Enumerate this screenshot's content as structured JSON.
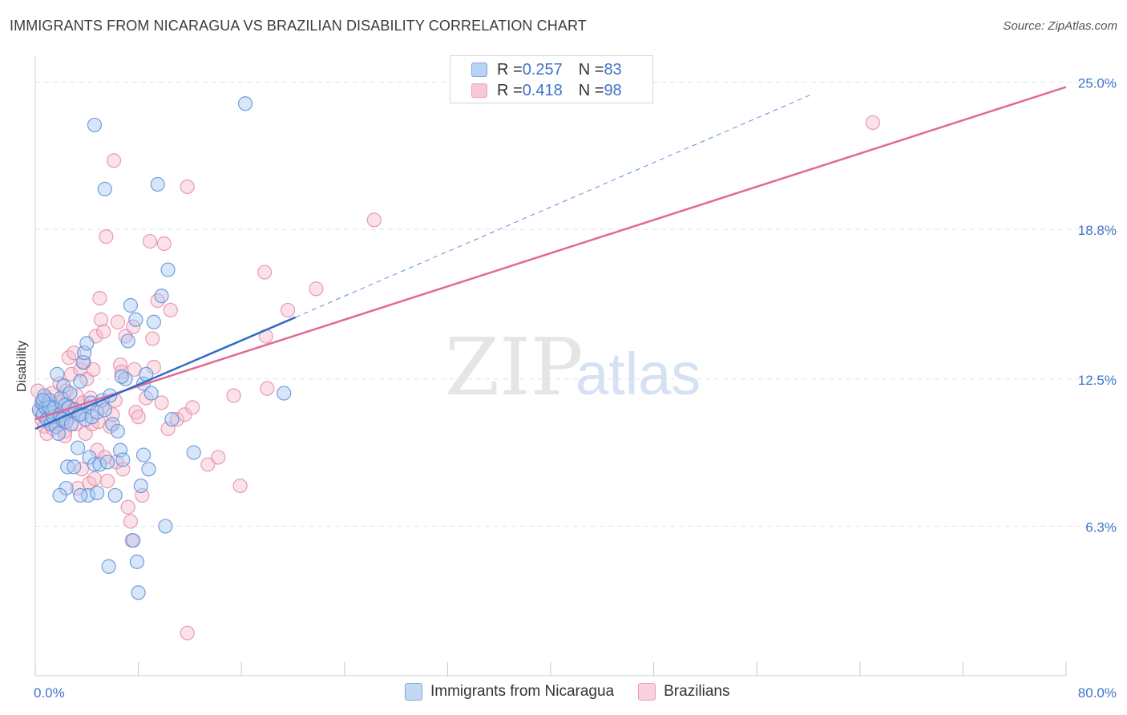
{
  "header": {
    "title": "IMMIGRANTS FROM NICARAGUA VS BRAZILIAN DISABILITY CORRELATION CHART",
    "source": "Source: ZipAtlas.com"
  },
  "watermark": {
    "zip": "ZIP",
    "atlas": "atlas"
  },
  "legend": {
    "blue": {
      "r_label": "R = ",
      "r_value": "0.257",
      "n_label": "N = ",
      "n_value": "83"
    },
    "pink": {
      "r_label": "R = ",
      "r_value": "0.418",
      "n_label": "N = ",
      "n_value": "98"
    }
  },
  "colors": {
    "blue": "#5b8fd8",
    "blue_fill": "#a9c7f2",
    "blue_line": "#2f6cc7",
    "pink": "#e88aa8",
    "pink_fill": "#f6bccd",
    "pink_line": "#e06a92",
    "axis_text": "#3f74c9",
    "grid": "#e3e3e3"
  },
  "chart_data": {
    "type": "scatter",
    "title": "IMMIGRANTS FROM NICARAGUA VS BRAZILIAN DISABILITY CORRELATION CHART",
    "xlabel": "",
    "ylabel": "Disability",
    "xlim": [
      0,
      80
    ],
    "ylim": [
      0,
      26
    ],
    "x_tick_labels": [
      {
        "value": 0,
        "label": "0.0%"
      },
      {
        "value": 80,
        "label": "80.0%"
      }
    ],
    "y_tick_labels": [
      {
        "value": 6.3,
        "label": "6.3%"
      },
      {
        "value": 12.5,
        "label": "12.5%"
      },
      {
        "value": 18.8,
        "label": "18.8%"
      },
      {
        "value": 25.0,
        "label": "25.0%"
      }
    ],
    "series": [
      {
        "name": "Immigrants from Nicaragua",
        "color": "blue",
        "R": 0.257,
        "N": 83,
        "trend": {
          "x": [
            0,
            20.2
          ],
          "y": [
            10.4,
            15.1
          ],
          "dashed_extension_to": [
            60.3,
            24.5
          ]
        },
        "points": [
          [
            0.3,
            11.2
          ],
          [
            0.5,
            11.5
          ],
          [
            0.6,
            11.0
          ],
          [
            0.7,
            11.8
          ],
          [
            0.8,
            11.3
          ],
          [
            0.9,
            10.8
          ],
          [
            1.0,
            11.4
          ],
          [
            1.1,
            11.6
          ],
          [
            1.2,
            10.6
          ],
          [
            1.3,
            11.1
          ],
          [
            1.4,
            10.9
          ],
          [
            1.5,
            11.3
          ],
          [
            1.6,
            10.5
          ],
          [
            1.7,
            12.7
          ],
          [
            1.8,
            10.2
          ],
          [
            1.9,
            11.0
          ],
          [
            2.0,
            11.7
          ],
          [
            2.1,
            10.8
          ],
          [
            2.2,
            12.2
          ],
          [
            2.3,
            11.4
          ],
          [
            2.4,
            10.7
          ],
          [
            2.5,
            8.8
          ],
          [
            2.6,
            11.3
          ],
          [
            2.7,
            11.9
          ],
          [
            2.8,
            10.6
          ],
          [
            3.0,
            8.8
          ],
          [
            3.1,
            11.2
          ],
          [
            3.3,
            9.6
          ],
          [
            3.5,
            12.4
          ],
          [
            3.6,
            11.0
          ],
          [
            3.7,
            13.2
          ],
          [
            3.8,
            13.6
          ],
          [
            3.9,
            10.8
          ],
          [
            4.0,
            14.0
          ],
          [
            4.1,
            7.6
          ],
          [
            4.2,
            9.2
          ],
          [
            4.3,
            11.5
          ],
          [
            4.4,
            10.9
          ],
          [
            4.6,
            8.9
          ],
          [
            4.8,
            11.1
          ],
          [
            5.0,
            8.9
          ],
          [
            5.2,
            11.6
          ],
          [
            5.4,
            11.2
          ],
          [
            5.6,
            9.0
          ],
          [
            5.8,
            11.8
          ],
          [
            6.0,
            10.6
          ],
          [
            6.2,
            7.6
          ],
          [
            6.4,
            10.3
          ],
          [
            6.6,
            9.5
          ],
          [
            6.8,
            9.1
          ],
          [
            7.0,
            12.5
          ],
          [
            7.2,
            14.1
          ],
          [
            7.4,
            15.6
          ],
          [
            7.6,
            5.7
          ],
          [
            7.8,
            15.0
          ],
          [
            8.0,
            3.5
          ],
          [
            8.2,
            8.0
          ],
          [
            8.4,
            12.3
          ],
          [
            8.6,
            12.7
          ],
          [
            8.8,
            8.7
          ],
          [
            9.0,
            11.9
          ],
          [
            9.2,
            14.9
          ],
          [
            9.5,
            20.7
          ],
          [
            9.8,
            16.0
          ],
          [
            10.1,
            6.3
          ],
          [
            10.3,
            17.1
          ],
          [
            10.6,
            10.8
          ],
          [
            12.3,
            9.4
          ],
          [
            16.3,
            24.1
          ],
          [
            19.3,
            11.9
          ],
          [
            4.6,
            23.2
          ],
          [
            5.4,
            20.5
          ],
          [
            5.7,
            4.6
          ],
          [
            7.9,
            4.8
          ],
          [
            3.5,
            7.6
          ],
          [
            2.4,
            7.9
          ],
          [
            1.9,
            7.6
          ],
          [
            4.8,
            7.7
          ],
          [
            6.7,
            12.6
          ],
          [
            8.4,
            9.3
          ],
          [
            1.1,
            11.3
          ],
          [
            0.6,
            11.6
          ],
          [
            3.4,
            11.0
          ]
        ]
      },
      {
        "name": "Brazilians",
        "color": "pink",
        "R": 0.418,
        "N": 98,
        "trend": {
          "x": [
            0,
            80
          ],
          "y": [
            10.8,
            24.8
          ]
        },
        "points": [
          [
            0.2,
            12.0
          ],
          [
            0.4,
            11.1
          ],
          [
            0.5,
            10.8
          ],
          [
            0.6,
            11.4
          ],
          [
            0.7,
            10.5
          ],
          [
            0.8,
            11.7
          ],
          [
            0.9,
            10.2
          ],
          [
            1.0,
            11.0
          ],
          [
            1.1,
            11.3
          ],
          [
            1.2,
            10.7
          ],
          [
            1.3,
            11.9
          ],
          [
            1.4,
            10.4
          ],
          [
            1.5,
            11.2
          ],
          [
            1.6,
            10.9
          ],
          [
            1.7,
            11.5
          ],
          [
            1.8,
            10.6
          ],
          [
            1.9,
            12.3
          ],
          [
            2.0,
            11.1
          ],
          [
            2.1,
            10.8
          ],
          [
            2.2,
            11.6
          ],
          [
            2.3,
            10.3
          ],
          [
            2.4,
            12.0
          ],
          [
            2.5,
            11.4
          ],
          [
            2.6,
            13.4
          ],
          [
            2.7,
            10.9
          ],
          [
            2.8,
            12.7
          ],
          [
            2.9,
            11.2
          ],
          [
            3.0,
            13.6
          ],
          [
            3.1,
            10.6
          ],
          [
            3.2,
            11.8
          ],
          [
            3.3,
            7.9
          ],
          [
            3.4,
            11.0
          ],
          [
            3.5,
            12.9
          ],
          [
            3.6,
            8.7
          ],
          [
            3.7,
            11.5
          ],
          [
            3.8,
            13.2
          ],
          [
            3.9,
            10.2
          ],
          [
            4.0,
            12.5
          ],
          [
            4.1,
            11.3
          ],
          [
            4.2,
            8.1
          ],
          [
            4.3,
            11.7
          ],
          [
            4.4,
            10.6
          ],
          [
            4.5,
            12.9
          ],
          [
            4.6,
            8.3
          ],
          [
            4.7,
            14.3
          ],
          [
            4.8,
            9.5
          ],
          [
            4.9,
            10.7
          ],
          [
            5.0,
            15.9
          ],
          [
            5.1,
            15.0
          ],
          [
            5.2,
            11.3
          ],
          [
            5.3,
            14.5
          ],
          [
            5.4,
            9.2
          ],
          [
            5.5,
            18.5
          ],
          [
            5.6,
            8.2
          ],
          [
            5.8,
            10.5
          ],
          [
            6.0,
            11.0
          ],
          [
            6.2,
            11.6
          ],
          [
            6.3,
            9.0
          ],
          [
            6.4,
            14.9
          ],
          [
            6.6,
            13.1
          ],
          [
            6.8,
            8.7
          ],
          [
            7.0,
            14.3
          ],
          [
            7.2,
            7.1
          ],
          [
            7.4,
            6.5
          ],
          [
            7.5,
            5.7
          ],
          [
            7.6,
            14.7
          ],
          [
            7.7,
            12.9
          ],
          [
            7.8,
            11.1
          ],
          [
            8.0,
            10.9
          ],
          [
            8.3,
            7.6
          ],
          [
            8.6,
            11.7
          ],
          [
            8.9,
            18.3
          ],
          [
            9.1,
            14.2
          ],
          [
            9.2,
            13.0
          ],
          [
            9.5,
            15.8
          ],
          [
            9.8,
            11.5
          ],
          [
            10.0,
            18.2
          ],
          [
            10.3,
            10.4
          ],
          [
            10.5,
            15.4
          ],
          [
            11.0,
            10.8
          ],
          [
            11.6,
            11.0
          ],
          [
            11.8,
            20.6
          ],
          [
            12.2,
            11.3
          ],
          [
            13.4,
            8.9
          ],
          [
            14.2,
            9.2
          ],
          [
            15.4,
            11.8
          ],
          [
            15.9,
            8.0
          ],
          [
            17.8,
            17.0
          ],
          [
            17.9,
            14.3
          ],
          [
            18.0,
            12.1
          ],
          [
            19.6,
            15.4
          ],
          [
            21.8,
            16.3
          ],
          [
            26.3,
            19.2
          ],
          [
            65.0,
            23.3
          ],
          [
            6.1,
            21.7
          ],
          [
            6.7,
            12.8
          ],
          [
            11.8,
            1.8
          ],
          [
            2.3,
            10.1
          ]
        ]
      }
    ]
  },
  "bottom_legend": {
    "blue_label": "Immigrants from Nicaragua",
    "pink_label": "Brazilians"
  }
}
